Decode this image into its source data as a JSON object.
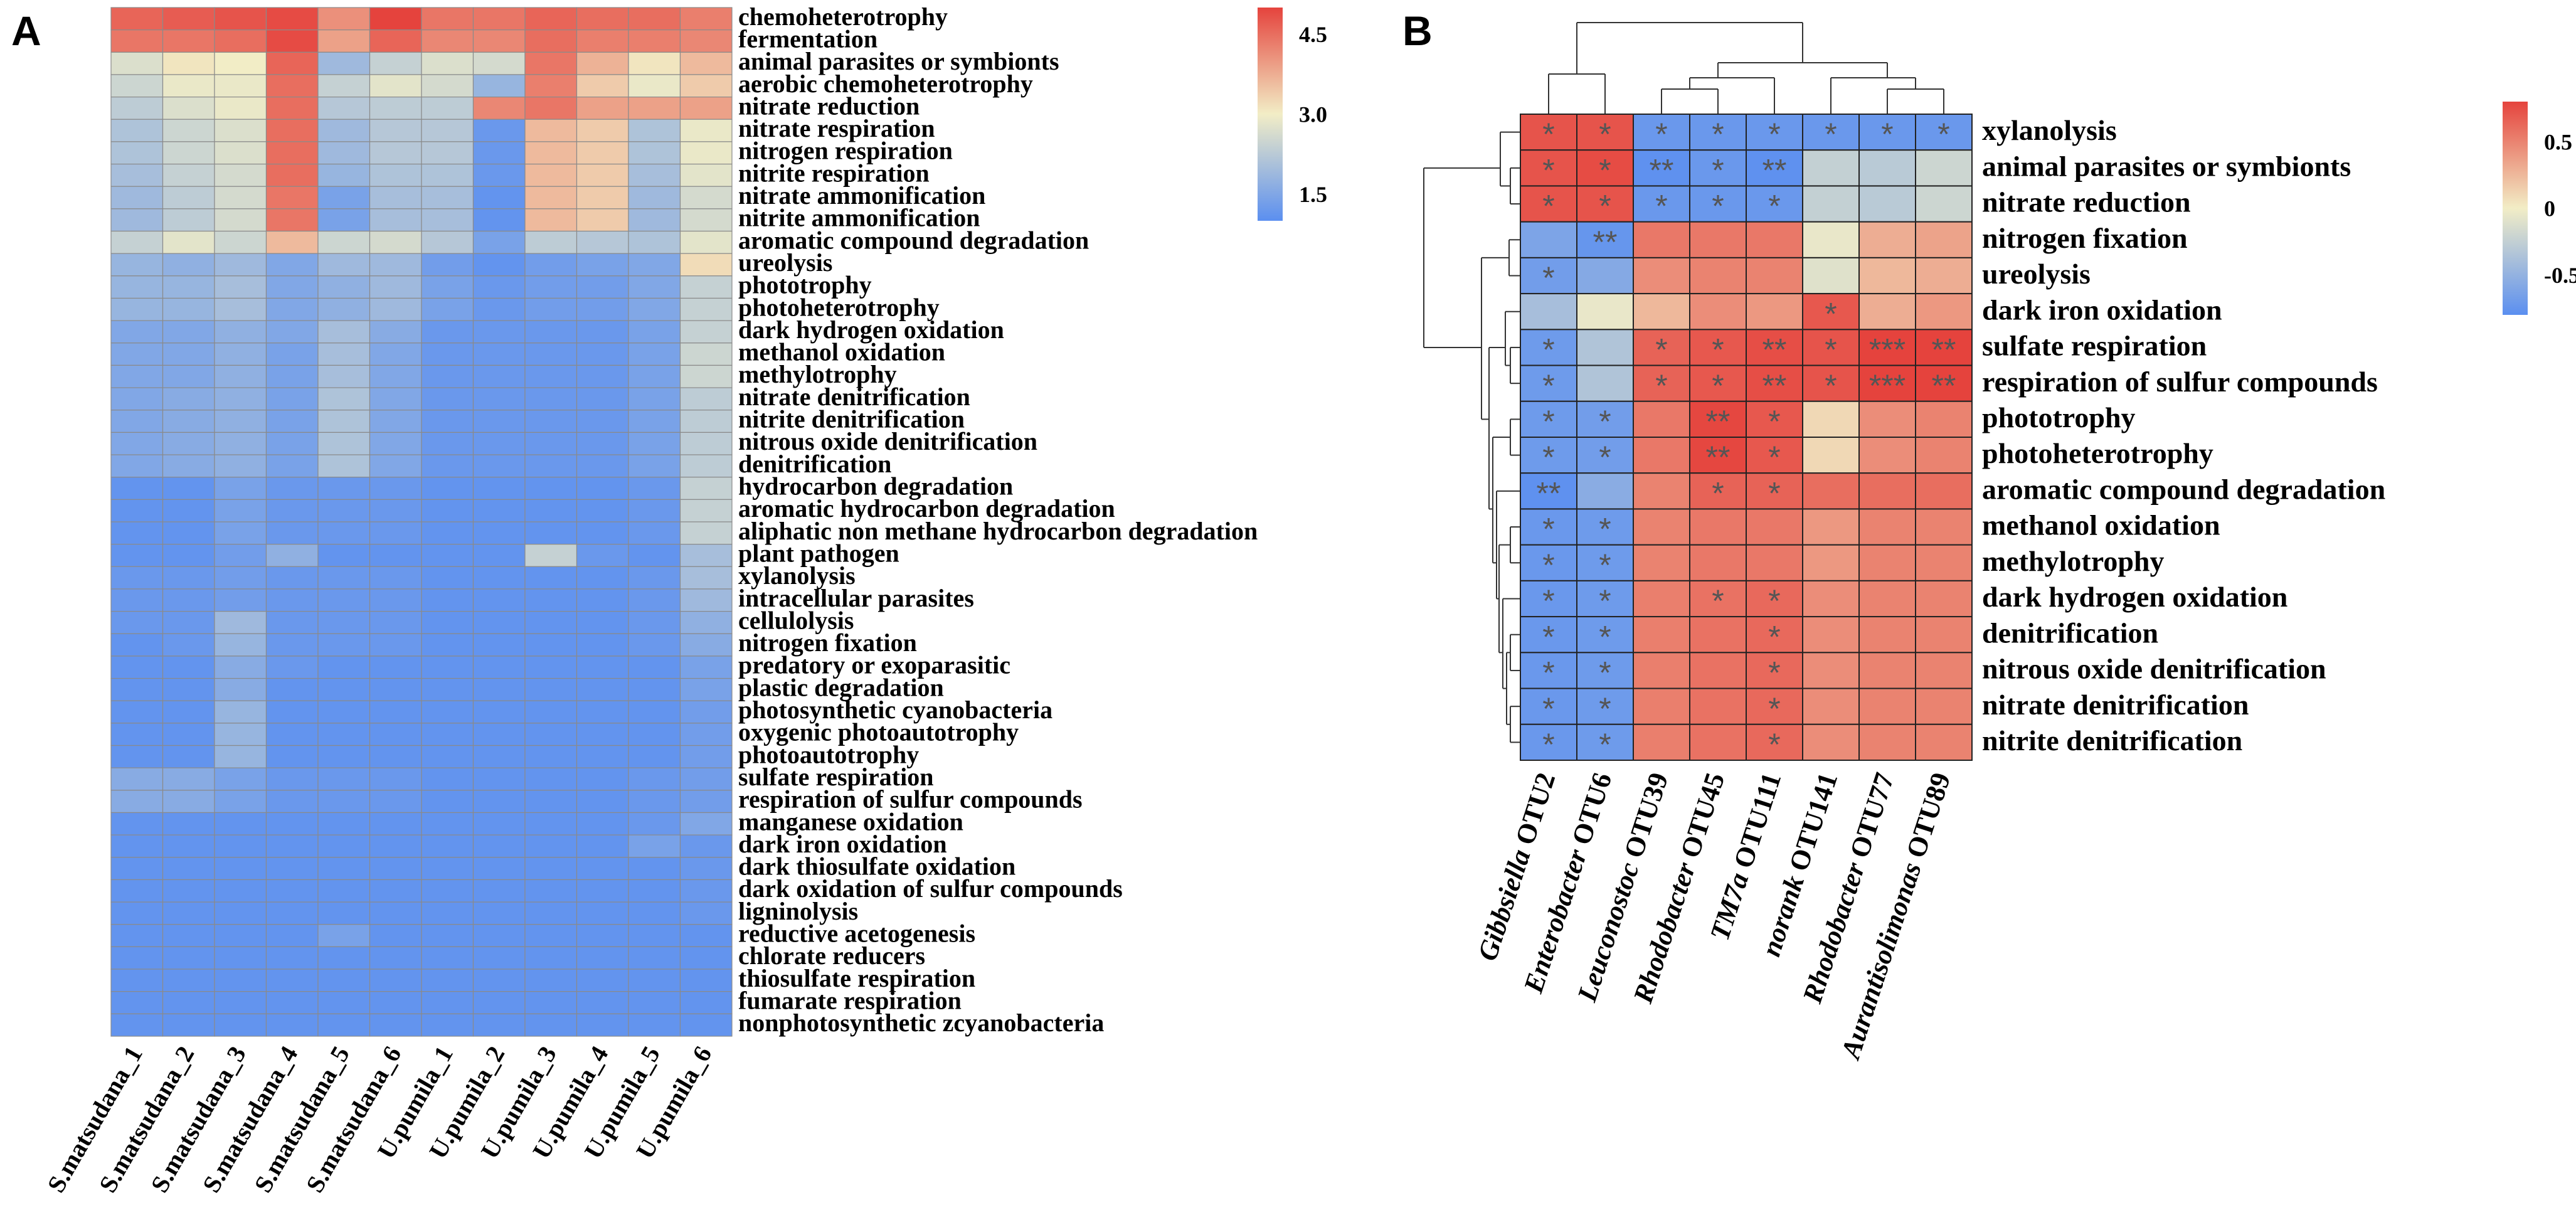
{
  "panels": {
    "a": {
      "letter": "A"
    },
    "b": {
      "letter": "B"
    }
  },
  "chart_data": [
    {
      "type": "heatmap",
      "panel": "A",
      "title": "",
      "columns": [
        "S.matsudana_1",
        "S.matsudana_2",
        "S.matsudana_3",
        "S.matsudana_4",
        "S.matsudana_5",
        "S.matsudana_6",
        "U.pumila_1",
        "U.pumila_2",
        "U.pumila_3",
        "U.pumila_4",
        "U.pumila_5",
        "U.pumila_6"
      ],
      "rows": [
        "chemoheterotrophy",
        "fermentation",
        "animal parasites or symbionts",
        "aerobic chemoheterotrophy",
        "nitrate reduction",
        "nitrate respiration",
        "nitrogen respiration",
        "nitrite respiration",
        "nitrate ammonification",
        "nitrite ammonification",
        "aromatic compound degradation",
        "ureolysis",
        "phototrophy",
        "photoheterotrophy",
        "dark hydrogen oxidation",
        "methanol oxidation",
        "methylotrophy",
        "nitrate denitrification",
        "nitrite denitrification",
        "nitrous oxide denitrification",
        "denitrification",
        "hydrocarbon degradation",
        "aromatic hydrocarbon degradation",
        "aliphatic non methane hydrocarbon degradation",
        "plant pathogen",
        "xylanolysis",
        "intracellular parasites",
        "cellulolysis",
        "nitrogen fixation",
        "predatory or exoparasitic",
        "plastic degradation",
        "photosynthetic cyanobacteria",
        "oxygenic photoautotrophy",
        "photoautotrophy",
        "sulfate respiration",
        "respiration of sulfur compounds",
        "manganese oxidation",
        "dark iron oxidation",
        "dark thiosulfate oxidation",
        "dark oxidation of sulfur compounds",
        "ligninolysis",
        "reductive acetogenesis",
        "chlorate reducers",
        "thiosulfate respiration",
        "fumarate respiration",
        "nonphotosynthetic zcyanobacteria"
      ],
      "values": [
        [
          4.6,
          4.7,
          4.8,
          4.9,
          4.1,
          5.0,
          4.4,
          4.4,
          4.6,
          4.5,
          4.5,
          4.3
        ],
        [
          4.4,
          4.4,
          4.5,
          4.9,
          3.9,
          4.6,
          4.2,
          4.2,
          4.5,
          4.3,
          4.3,
          4.2
        ],
        [
          2.7,
          3.1,
          3.0,
          4.6,
          1.9,
          2.4,
          2.7,
          2.6,
          4.4,
          3.7,
          3.1,
          3.6
        ],
        [
          2.5,
          2.9,
          2.9,
          4.5,
          2.4,
          2.8,
          2.6,
          1.8,
          4.3,
          3.4,
          2.9,
          3.4
        ],
        [
          2.3,
          2.7,
          2.9,
          4.5,
          2.2,
          2.3,
          2.3,
          4.2,
          4.4,
          3.9,
          3.9,
          3.9
        ],
        [
          2.1,
          2.5,
          2.7,
          4.5,
          1.9,
          2.2,
          2.2,
          1.2,
          3.6,
          3.4,
          2.1,
          2.9
        ],
        [
          2.1,
          2.5,
          2.7,
          4.5,
          1.9,
          2.2,
          2.2,
          1.2,
          3.6,
          3.4,
          2.1,
          2.9
        ],
        [
          2.0,
          2.4,
          2.6,
          4.5,
          1.8,
          2.1,
          2.1,
          1.2,
          3.6,
          3.4,
          2.0,
          2.8
        ],
        [
          1.9,
          2.3,
          2.6,
          4.4,
          1.4,
          2.0,
          2.0,
          1.1,
          3.6,
          3.4,
          1.9,
          2.6
        ],
        [
          1.9,
          2.3,
          2.6,
          4.4,
          1.4,
          2.0,
          2.0,
          1.1,
          3.6,
          3.4,
          1.9,
          2.6
        ],
        [
          2.4,
          2.8,
          2.5,
          3.6,
          2.5,
          2.6,
          2.2,
          1.4,
          2.3,
          2.2,
          2.1,
          2.8
        ],
        [
          1.8,
          1.7,
          1.9,
          1.5,
          1.9,
          1.9,
          1.3,
          1.1,
          1.3,
          1.4,
          1.5,
          3.2
        ],
        [
          1.8,
          1.8,
          2.0,
          1.5,
          1.7,
          1.9,
          1.4,
          1.2,
          1.3,
          1.3,
          1.5,
          2.4
        ],
        [
          1.8,
          1.8,
          2.0,
          1.5,
          1.7,
          1.9,
          1.4,
          1.2,
          1.3,
          1.3,
          1.5,
          2.4
        ],
        [
          1.5,
          1.5,
          1.7,
          1.5,
          2.0,
          1.6,
          1.2,
          1.2,
          1.2,
          1.2,
          1.4,
          2.4
        ],
        [
          1.5,
          1.5,
          1.7,
          1.4,
          2.0,
          1.5,
          1.2,
          1.2,
          1.2,
          1.2,
          1.4,
          2.5
        ],
        [
          1.5,
          1.5,
          1.7,
          1.4,
          2.0,
          1.5,
          1.2,
          1.2,
          1.2,
          1.2,
          1.4,
          2.5
        ],
        [
          1.5,
          1.6,
          1.7,
          1.4,
          2.1,
          1.5,
          1.2,
          1.2,
          1.2,
          1.2,
          1.4,
          2.3
        ],
        [
          1.5,
          1.6,
          1.7,
          1.4,
          2.1,
          1.5,
          1.2,
          1.2,
          1.2,
          1.2,
          1.4,
          2.3
        ],
        [
          1.5,
          1.6,
          1.7,
          1.4,
          2.1,
          1.5,
          1.2,
          1.2,
          1.2,
          1.2,
          1.4,
          2.3
        ],
        [
          1.5,
          1.6,
          1.7,
          1.4,
          2.1,
          1.5,
          1.2,
          1.2,
          1.2,
          1.2,
          1.4,
          2.3
        ],
        [
          1.1,
          1.1,
          1.4,
          1.2,
          1.2,
          1.2,
          1.1,
          1.1,
          1.1,
          1.1,
          1.2,
          2.4
        ],
        [
          1.1,
          1.1,
          1.4,
          1.2,
          1.2,
          1.2,
          1.1,
          1.1,
          1.1,
          1.1,
          1.2,
          2.4
        ],
        [
          1.1,
          1.1,
          1.4,
          1.2,
          1.2,
          1.2,
          1.1,
          1.1,
          1.1,
          1.1,
          1.2,
          2.4
        ],
        [
          1.1,
          1.1,
          1.3,
          1.7,
          1.1,
          1.1,
          1.1,
          1.1,
          2.4,
          1.2,
          1.1,
          2.0
        ],
        [
          1.2,
          1.2,
          1.3,
          1.2,
          1.2,
          1.2,
          1.1,
          1.1,
          1.1,
          1.1,
          1.2,
          2.0
        ],
        [
          1.2,
          1.2,
          1.3,
          1.2,
          1.2,
          1.2,
          1.1,
          1.1,
          1.1,
          1.1,
          1.2,
          1.9
        ],
        [
          1.2,
          1.2,
          1.9,
          1.2,
          1.2,
          1.2,
          1.1,
          1.1,
          1.1,
          1.1,
          1.2,
          1.7
        ],
        [
          1.1,
          1.2,
          1.8,
          1.2,
          1.2,
          1.2,
          1.1,
          1.1,
          1.1,
          1.1,
          1.2,
          1.6
        ],
        [
          1.1,
          1.1,
          1.6,
          1.2,
          1.1,
          1.1,
          1.1,
          1.1,
          1.1,
          1.1,
          1.1,
          1.4
        ],
        [
          1.1,
          1.1,
          1.6,
          1.1,
          1.1,
          1.1,
          1.1,
          1.1,
          1.1,
          1.1,
          1.1,
          1.4
        ],
        [
          1.1,
          1.1,
          1.8,
          1.1,
          1.1,
          1.1,
          1.1,
          1.1,
          1.1,
          1.1,
          1.1,
          1.3
        ],
        [
          1.1,
          1.1,
          1.8,
          1.1,
          1.1,
          1.1,
          1.1,
          1.1,
          1.1,
          1.1,
          1.1,
          1.3
        ],
        [
          1.1,
          1.1,
          1.8,
          1.1,
          1.1,
          1.1,
          1.1,
          1.1,
          1.1,
          1.1,
          1.1,
          1.3
        ],
        [
          1.6,
          1.6,
          1.4,
          1.2,
          1.2,
          1.2,
          1.1,
          1.1,
          1.1,
          1.1,
          1.2,
          1.3
        ],
        [
          1.6,
          1.6,
          1.4,
          1.2,
          1.2,
          1.2,
          1.1,
          1.1,
          1.1,
          1.1,
          1.2,
          1.3
        ],
        [
          1.1,
          1.1,
          1.1,
          1.1,
          1.1,
          1.1,
          1.1,
          1.1,
          1.1,
          1.1,
          1.2,
          1.5
        ],
        [
          1.1,
          1.1,
          1.1,
          1.1,
          1.1,
          1.1,
          1.1,
          1.1,
          1.1,
          1.1,
          1.4,
          1.2
        ],
        [
          1.1,
          1.1,
          1.1,
          1.1,
          1.1,
          1.1,
          1.1,
          1.1,
          1.1,
          1.1,
          1.1,
          1.2
        ],
        [
          1.1,
          1.1,
          1.1,
          1.1,
          1.1,
          1.1,
          1.1,
          1.1,
          1.1,
          1.1,
          1.1,
          1.2
        ],
        [
          1.1,
          1.1,
          1.1,
          1.1,
          1.1,
          1.1,
          1.1,
          1.1,
          1.1,
          1.1,
          1.1,
          1.2
        ],
        [
          1.1,
          1.1,
          1.1,
          1.1,
          1.4,
          1.1,
          1.1,
          1.1,
          1.1,
          1.1,
          1.1,
          1.1
        ],
        [
          1.1,
          1.1,
          1.1,
          1.1,
          1.1,
          1.1,
          1.1,
          1.1,
          1.1,
          1.1,
          1.1,
          1.1
        ],
        [
          1.1,
          1.1,
          1.1,
          1.1,
          1.1,
          1.1,
          1.1,
          1.1,
          1.1,
          1.1,
          1.1,
          1.1
        ],
        [
          1.1,
          1.1,
          1.1,
          1.1,
          1.1,
          1.1,
          1.1,
          1.1,
          1.1,
          1.1,
          1.1,
          1.1
        ],
        [
          1.1,
          1.1,
          1.1,
          1.1,
          1.1,
          1.1,
          1.1,
          1.1,
          1.1,
          1.1,
          1.1,
          1.1
        ]
      ],
      "colorbar": {
        "min": 1.0,
        "max": 5.0,
        "ticks": [
          1.5,
          3.0,
          4.5
        ],
        "tick_labels": [
          "1.5",
          "3.0",
          "4.5"
        ]
      },
      "colors": {
        "low": "#5b8ff0",
        "mid": "#f2edc6",
        "high": "#e5433d"
      }
    },
    {
      "type": "heatmap",
      "panel": "B",
      "title": "",
      "columns": [
        "Gibbsiella OTU2",
        "Enterobacter OTU6",
        "Leuconostoc OTU39",
        "Rhodobacter OTU45",
        "TM7a OTU111",
        "norank OTU141",
        "Rhodobacter OTU77",
        "Aurantisolimonas OTU89"
      ],
      "column_genus": [
        "Gibbsiella",
        "Enterobacter",
        "Leuconostoc",
        "Rhodobacter",
        "TM7a",
        "norank",
        "Rhodobacter",
        "Aurantisolimonas"
      ],
      "column_otu": [
        "OTU2",
        "OTU6",
        "OTU39",
        "OTU45",
        "OTU111",
        "OTU141",
        "OTU77",
        "OTU89"
      ],
      "rows": [
        "xylanolysis",
        "animal parasites or symbionts",
        "nitrate reduction",
        "nitrogen fixation",
        "ureolysis",
        "dark iron oxidation",
        "sulfate respiration",
        "respiration of sulfur compounds",
        "phototrophy",
        "photoheterotrophy",
        "aromatic compound degradation",
        "methanol oxidation",
        "methylotrophy",
        "dark hydrogen oxidation",
        "denitrification",
        "nitrous oxide denitrification",
        "nitrate denitrification",
        "nitrite denitrification"
      ],
      "values": [
        [
          0.72,
          0.72,
          -0.72,
          -0.72,
          -0.72,
          -0.72,
          -0.72,
          -0.72
        ],
        [
          0.72,
          0.76,
          -0.78,
          -0.72,
          -0.78,
          -0.25,
          -0.3,
          -0.2
        ],
        [
          0.72,
          0.72,
          -0.72,
          -0.72,
          -0.72,
          -0.25,
          -0.3,
          -0.2
        ],
        [
          -0.62,
          -0.74,
          0.55,
          0.55,
          0.55,
          -0.05,
          0.3,
          0.35
        ],
        [
          -0.68,
          -0.58,
          0.45,
          0.5,
          0.5,
          -0.1,
          0.25,
          0.3
        ],
        [
          -0.4,
          -0.05,
          0.25,
          0.45,
          0.4,
          0.7,
          0.3,
          0.4
        ],
        [
          -0.7,
          -0.35,
          0.65,
          0.7,
          0.75,
          0.72,
          0.8,
          0.8
        ],
        [
          -0.7,
          -0.35,
          0.65,
          0.7,
          0.75,
          0.72,
          0.8,
          0.8
        ],
        [
          -0.7,
          -0.68,
          0.55,
          0.78,
          0.7,
          0.1,
          0.45,
          0.5
        ],
        [
          -0.7,
          -0.68,
          0.55,
          0.78,
          0.7,
          0.1,
          0.45,
          0.5
        ],
        [
          -0.78,
          -0.55,
          0.5,
          0.65,
          0.65,
          0.6,
          0.6,
          0.6
        ],
        [
          -0.72,
          -0.7,
          0.5,
          0.55,
          0.55,
          0.4,
          0.5,
          0.5
        ],
        [
          -0.72,
          -0.7,
          0.5,
          0.55,
          0.55,
          0.4,
          0.5,
          0.5
        ],
        [
          -0.72,
          -0.7,
          0.52,
          0.58,
          0.62,
          0.45,
          0.5,
          0.5
        ],
        [
          -0.72,
          -0.7,
          0.52,
          0.58,
          0.62,
          0.45,
          0.5,
          0.5
        ],
        [
          -0.72,
          -0.7,
          0.52,
          0.58,
          0.62,
          0.45,
          0.5,
          0.5
        ],
        [
          -0.72,
          -0.7,
          0.52,
          0.58,
          0.62,
          0.45,
          0.5,
          0.5
        ],
        [
          -0.72,
          -0.7,
          0.52,
          0.58,
          0.62,
          0.45,
          0.5,
          0.5
        ]
      ],
      "significance": [
        [
          "*",
          "*",
          "*",
          "*",
          "*",
          "*",
          "*",
          "*"
        ],
        [
          "*",
          "*",
          "**",
          "*",
          "**",
          "",
          "",
          ""
        ],
        [
          "*",
          "*",
          "*",
          "*",
          "*",
          "",
          "",
          ""
        ],
        [
          "",
          "**",
          "",
          "",
          "",
          "",
          "",
          ""
        ],
        [
          "*",
          "",
          "",
          "",
          "",
          "",
          "",
          ""
        ],
        [
          "",
          "",
          "",
          "",
          "",
          "*",
          "",
          ""
        ],
        [
          "*",
          "",
          "*",
          "*",
          "**",
          "*",
          "***",
          "**"
        ],
        [
          "*",
          "",
          "*",
          "*",
          "**",
          "*",
          "***",
          "**"
        ],
        [
          "*",
          "*",
          "",
          "**",
          "*",
          "",
          "",
          ""
        ],
        [
          "*",
          "*",
          "",
          "**",
          "*",
          "",
          "",
          ""
        ],
        [
          "**",
          "",
          "",
          "*",
          "*",
          "",
          "",
          ""
        ],
        [
          "*",
          "*",
          "",
          "",
          "",
          "",
          "",
          ""
        ],
        [
          "*",
          "*",
          "",
          "",
          "",
          "",
          "",
          ""
        ],
        [
          "*",
          "*",
          "",
          "*",
          "*",
          "",
          "",
          ""
        ],
        [
          "*",
          "*",
          "",
          "",
          "*",
          "",
          "",
          ""
        ],
        [
          "*",
          "*",
          "",
          "",
          "*",
          "",
          "",
          ""
        ],
        [
          "*",
          "*",
          "",
          "",
          "*",
          "",
          "",
          ""
        ],
        [
          "*",
          "*",
          "",
          "",
          "*",
          "",
          "",
          ""
        ]
      ],
      "colorbar": {
        "min": -0.8,
        "max": 0.8,
        "ticks": [
          0.5,
          0.0,
          -0.5
        ],
        "tick_labels": [
          "0.5",
          "0",
          "-0.5"
        ]
      },
      "colors": {
        "low": "#5b8ff0",
        "mid": "#f2edc6",
        "high": "#e5433d"
      }
    }
  ]
}
